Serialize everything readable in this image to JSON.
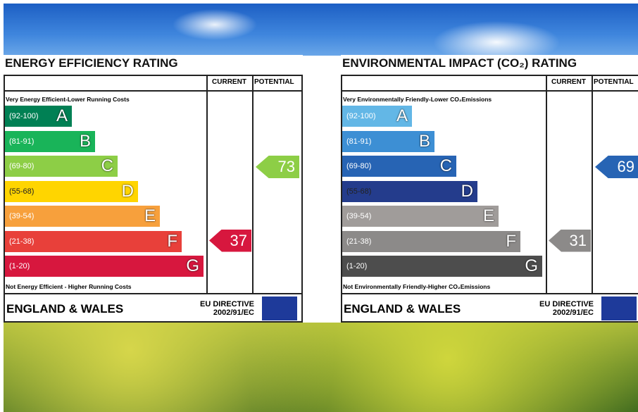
{
  "panels": [
    {
      "title": "ENERGY EFFICIENCY RATING",
      "current_header": "CURRENT",
      "potential_header": "POTENTIAL",
      "top_note": "Very Energy Efficient-Lower Running Costs",
      "bands": [
        {
          "range": "(92-100)",
          "letter": "A"
        },
        {
          "range": "(81-91)",
          "letter": "B"
        },
        {
          "range": "(69-80)",
          "letter": "C"
        },
        {
          "range": "(55-68)",
          "letter": "D"
        },
        {
          "range": "(39-54)",
          "letter": "E"
        },
        {
          "range": "(21-38)",
          "letter": "F"
        },
        {
          "range": "(1-20)",
          "letter": "G"
        }
      ],
      "bottom_note": "Not Energy Efficient - Higher Running Costs",
      "current": 37,
      "potential": 73,
      "region": "ENGLAND & WALES",
      "directive": "EU DIRECTIVE",
      "directive_code": "2002/91/EC"
    },
    {
      "title": "ENVIRONMENTAL IMPACT (CO₂) RATING",
      "current_header": "CURRENT",
      "potential_header": "POTENTIAL",
      "top_note": "Very Environmentally Friendly-Lower CO₂Emissions",
      "bands": [
        {
          "range": "(92-100)",
          "letter": "A"
        },
        {
          "range": "(81-91)",
          "letter": "B"
        },
        {
          "range": "(69-80)",
          "letter": "C"
        },
        {
          "range": "(55-68)",
          "letter": "D"
        },
        {
          "range": "(39-54)",
          "letter": "E"
        },
        {
          "range": "(21-38)",
          "letter": "F"
        },
        {
          "range": "(1-20)",
          "letter": "G"
        }
      ],
      "bottom_note": "Not Environmentally Friendly-Higher CO₂Emissions",
      "current": 31,
      "potential": 69,
      "region": "ENGLAND & WALES",
      "directive": "EU DIRECTIVE",
      "directive_code": "2002/91/EC"
    }
  ]
}
